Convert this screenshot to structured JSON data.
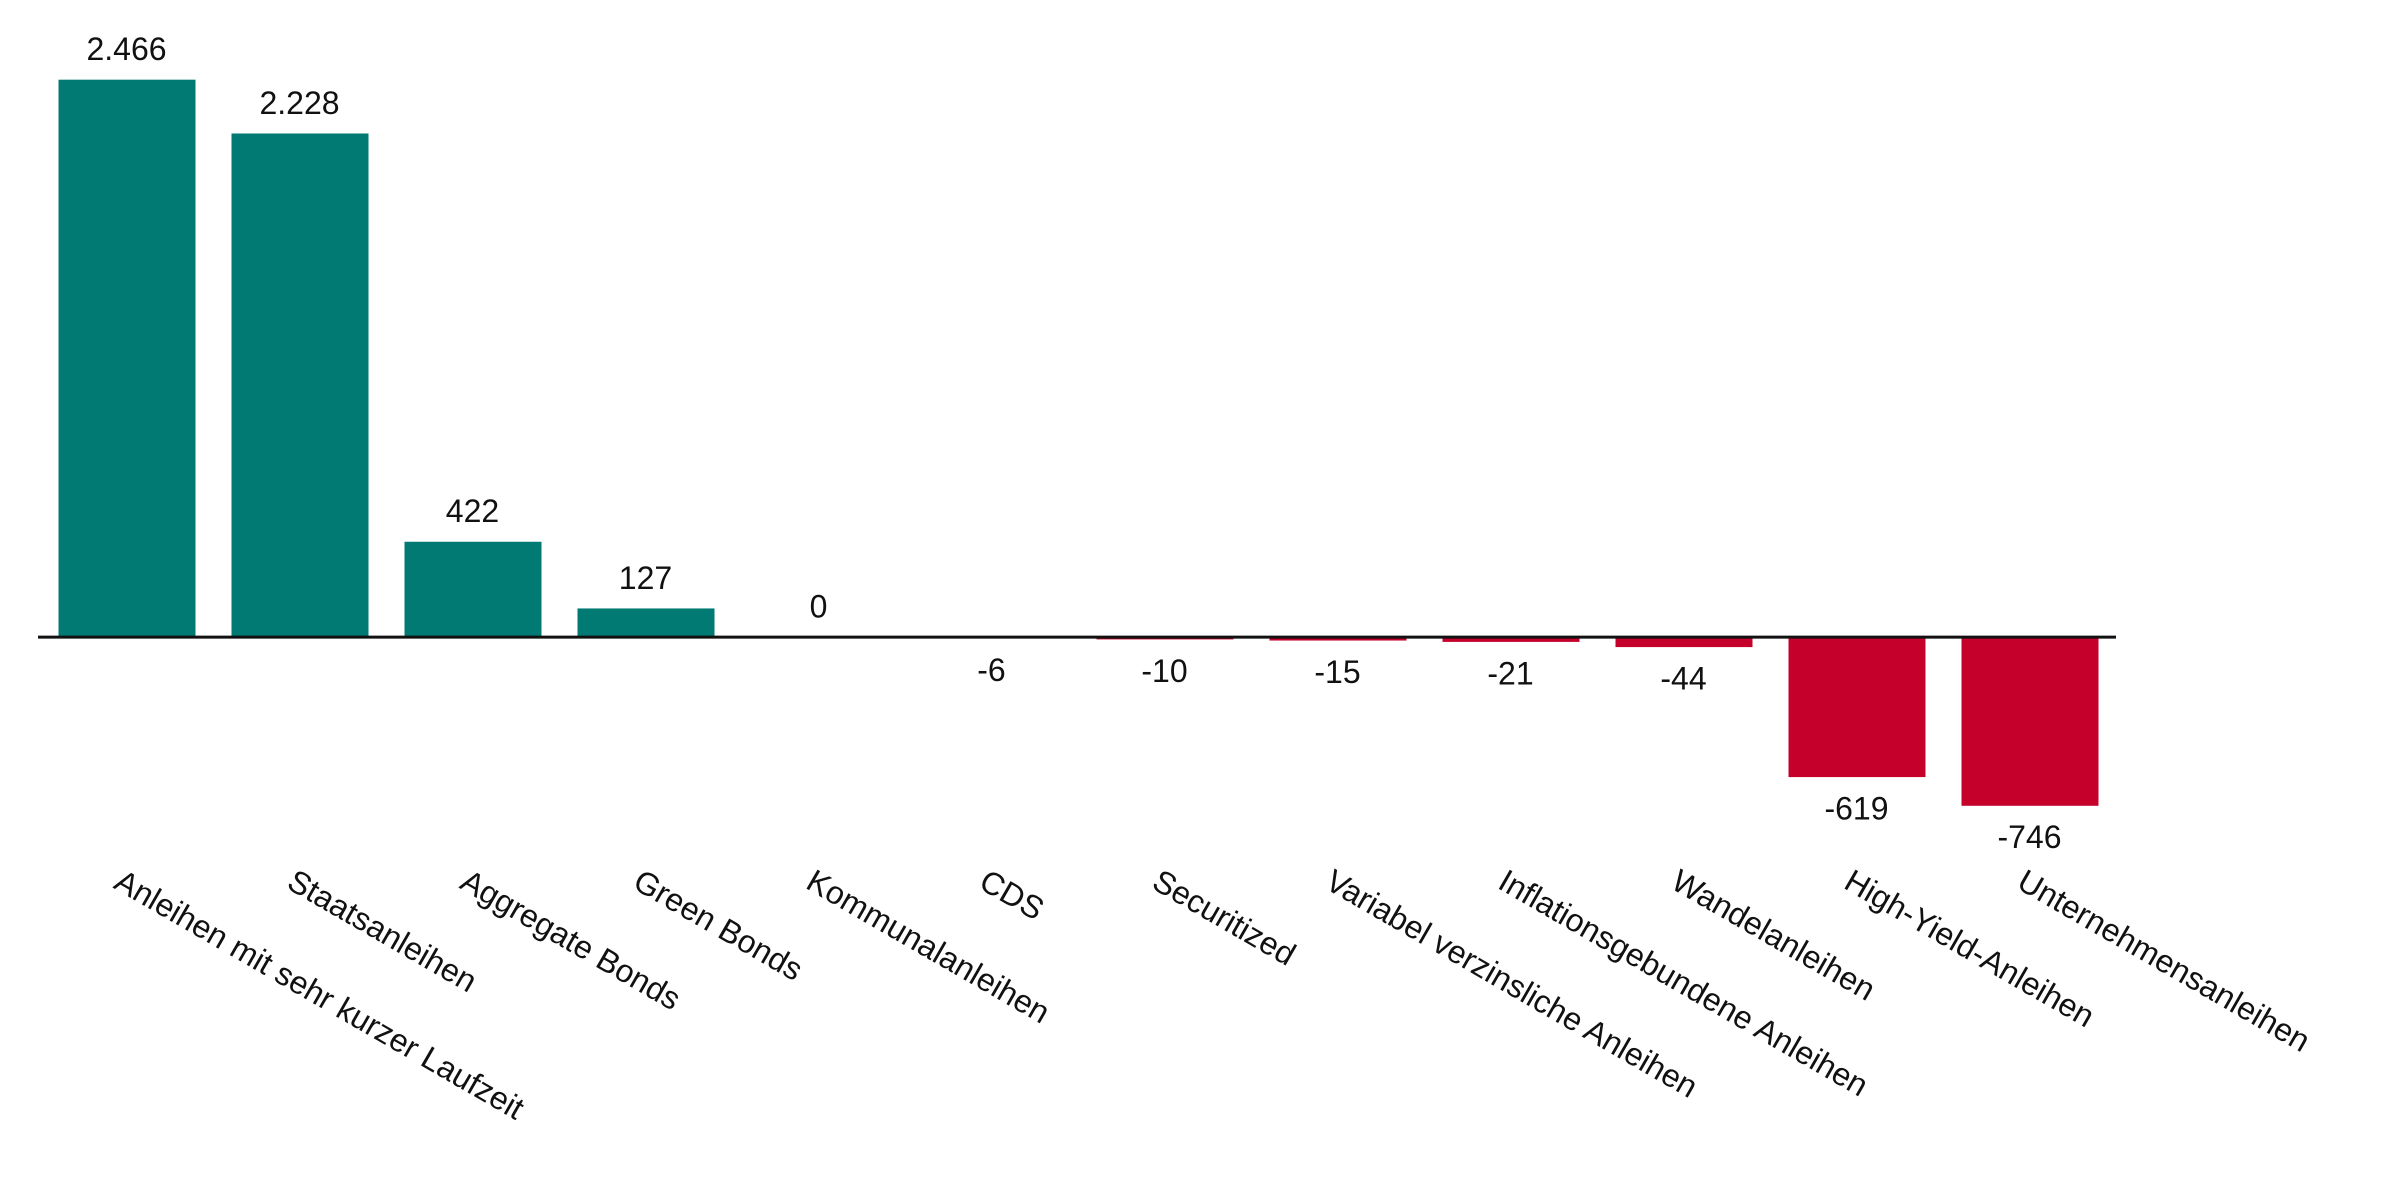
{
  "chart_data": {
    "type": "bar",
    "categories": [
      "Anleihen mit sehr kurzer Laufzeit",
      "Staatsanleihen",
      "Aggregate Bonds",
      "Green Bonds",
      "Kommunalanleihen",
      "CDS",
      "Securitized",
      "Variabel verzinsliche Anleihen",
      "Inflationsgebundene Anleihen",
      "Wandelanleihen",
      "High-Yield-Anleihen",
      "Unternehmensanleihen"
    ],
    "values": [
      2466,
      2228,
      422,
      127,
      0,
      -6,
      -10,
      -15,
      -21,
      -44,
      -619,
      -746
    ],
    "value_labels": [
      "2.466",
      "2.228",
      "422",
      "127",
      "0",
      "-6",
      "-10",
      "-15",
      "-21",
      "-44",
      "-619",
      "-746"
    ],
    "positive_color": "#007a73",
    "negative_color": "#c4002b",
    "ylim": [
      -800,
      2500
    ]
  }
}
